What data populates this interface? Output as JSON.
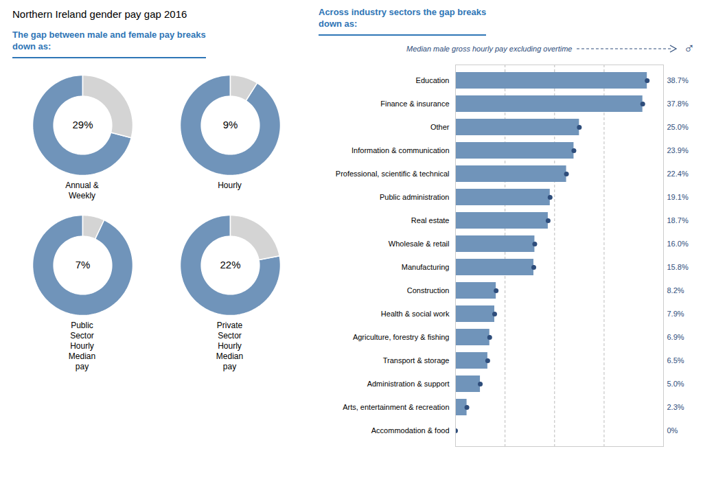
{
  "chart_data": [
    {
      "type": "donut",
      "title": "Northern Ireland gender pay gap 2016",
      "subtitle": "The gap between male and female pay breaks\ndown as:",
      "categories": [
        "Annual &\nWeekly",
        "Hourly",
        "Public\nSector\nHourly\nMedian\npay",
        "Private\nSector\nHourly\nMedian\npay"
      ],
      "values": [
        29,
        9,
        7,
        22
      ],
      "value_labels": [
        "29%",
        "9%",
        "7%",
        "22%"
      ],
      "data_labels": true,
      "ylim": [
        0,
        100
      ],
      "colors": [
        "#7094ba",
        "#d4d4d4"
      ]
    },
    {
      "type": "bar",
      "orientation": "horizontal",
      "subtitle": "Across industry sectors the gap breaks\ndown as:",
      "annotations": [
        "Median male gross hourly pay excluding overtime",
        "♂"
      ],
      "categories": [
        "Education",
        "Finance & insurance",
        "Other",
        "Information & communication",
        "Professional, scientific & technical",
        "Public administration",
        "Real estate",
        "Wholesale & retail",
        "Manufacturing",
        "Construction",
        "Health & social work",
        "Agriculture, forestry & fishing",
        "Transport & storage",
        "Administration & support",
        "Arts, entertainment & recreation",
        "Accommodation & food"
      ],
      "values": [
        38.7,
        37.8,
        25.0,
        23.9,
        22.4,
        19.1,
        18.7,
        16.0,
        15.8,
        8.2,
        7.9,
        6.9,
        6.5,
        5.0,
        2.3,
        0.0
      ],
      "value_labels": [
        "38.7%",
        "37.8%",
        "25.0%",
        "23.9%",
        "22.4%",
        "19.1%",
        "18.7%",
        "16.0%",
        "15.8%",
        "8.2%",
        "7.9%",
        "6.9%",
        "6.5%",
        "5.0%",
        "2.3%",
        "0%"
      ],
      "data_labels": true,
      "color": "#7094ba",
      "xlim": [
        0,
        42
      ],
      "xticks": [
        10,
        20,
        30,
        42
      ],
      "grid": true,
      "tick_labels": "y",
      "marker": "circle"
    }
  ]
}
